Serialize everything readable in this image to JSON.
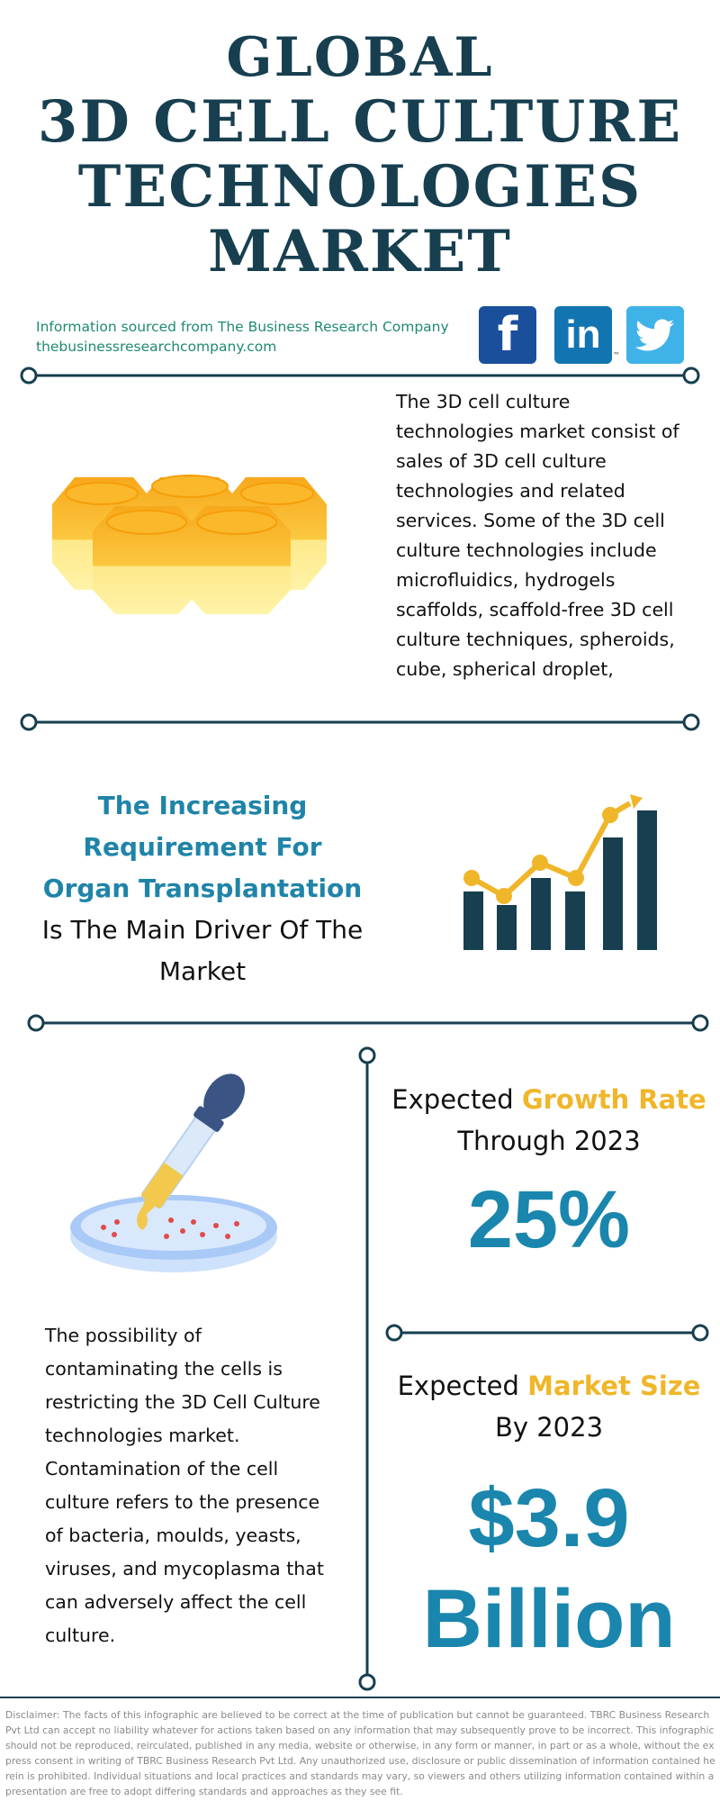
{
  "title": {
    "line1": "GLOBAL",
    "line2": "3D CELL CULTURE",
    "line3": "TECHNOLOGIES",
    "line4": "MARKET"
  },
  "source": {
    "line1": "Information sourced from The Business Research Company",
    "line2": "thebusinessresearchcompany.com"
  },
  "social": {
    "facebook_glyph": "f",
    "linkedin_glyph": "in",
    "linkedin_tm": "™",
    "twitter_glyph": "bird"
  },
  "description": "The 3D cell culture technologies market consist of sales of 3D cell culture technologies and related services. Some of the 3D cell culture technologies include microfluidics, hydrogels scaffolds, scaffold-free 3D cell culture techniques, spheroids, cube, spherical droplet,",
  "driver": {
    "highlight": "The Increasing Requirement For Organ Transplantation",
    "rest": " Is The Main Driver Of The Market"
  },
  "restraint": "The possibility of contaminating the cells is restricting the 3D Cell Culture technologies market. Contamination of the cell culture refers to the presence of bacteria, moulds, yeasts, viruses, and mycoplasma that can adversely affect the cell culture.",
  "growth": {
    "prefix": "Expected ",
    "highlight": "Growth Rate",
    "suffix": "Through 2023",
    "value": "25%"
  },
  "market_size": {
    "prefix": "Expected ",
    "highlight": "Market Size",
    "suffix": "By 2023",
    "value_line1": "$3.9",
    "value_line2": "Billion"
  },
  "disclaimer": "Disclaimer: The facts of this infographic are believed to be correct at the time of publication but cannot be guaranteed. TBRC Business Research Pvt Ltd can accept no liability whatever for actions taken based on any information that may subsequently prove to be incorrect. This infographic should not be reproduced, reirculated, published in any media, website or otherwise, in any form or manner, in part or as a whole, without the express consent in writing of TBRC Business Research Pvt Ltd. Any unauthorized use, disclosure or public dissemination of information contained herein is prohibited. Individual situations and local practices and standards may vary, so viewers and others utilizing information contained within a presentation are free to adopt differing standards and approaches as they see fit.",
  "colors": {
    "navy": "#173f4f",
    "teal": "#1f84a8",
    "gold": "#f0b62a",
    "green": "#1f8a70",
    "facebook": "#1a4f9c",
    "linkedin": "#1275b1",
    "twitter": "#3fb3e8"
  }
}
